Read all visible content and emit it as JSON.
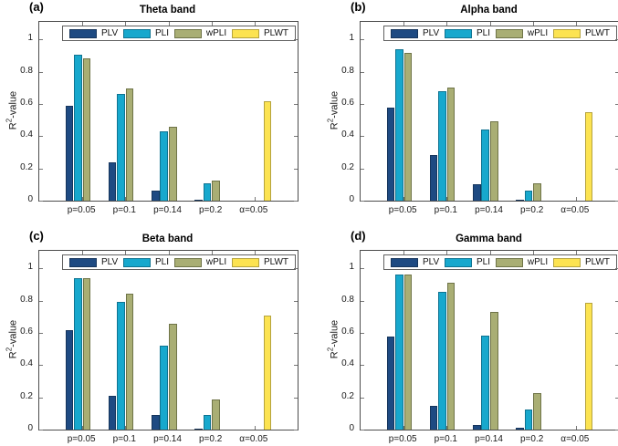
{
  "figure": {
    "background": "#ffffff",
    "axis_color": "#4c4c4c",
    "tick_color": "#777777"
  },
  "chart_data": [
    {
      "type": "bar",
      "panel_label": "(a)",
      "title": "Theta band",
      "ylabel_base": "R",
      "ylabel_sup": "2",
      "ylabel_rest": "-value",
      "categories": [
        "p=0.05",
        "p=0.1",
        "p=0.14",
        "p=0.2",
        "α=0.05"
      ],
      "series": [
        {
          "name": "PLV",
          "color": "#1e4a82",
          "edge": "#16355c",
          "values": [
            0.59,
            0.24,
            0.065,
            0.005,
            0
          ]
        },
        {
          "name": "PLI",
          "color": "#17a8cd",
          "edge": "#0f7391",
          "values": [
            0.905,
            0.665,
            0.43,
            0.105,
            0
          ]
        },
        {
          "name": "wPLI",
          "color": "#a9ae74",
          "edge": "#6f7448",
          "values": [
            0.885,
            0.695,
            0.46,
            0.125,
            0
          ]
        },
        {
          "name": "PLWT",
          "color": "#fce351",
          "edge": "#b5a33e",
          "values": [
            0,
            0,
            0,
            0,
            0.62
          ]
        }
      ],
      "ylim": [
        0,
        1.11
      ],
      "yticks": [
        "0",
        "0.2",
        "0.4",
        "0.6",
        "0.8",
        "1"
      ],
      "legend_position": "top-inside",
      "grid": false
    },
    {
      "type": "bar",
      "panel_label": "(b)",
      "title": "Alpha band",
      "ylabel_base": "R",
      "ylabel_sup": "2",
      "ylabel_rest": "-value",
      "categories": [
        "p=0.05",
        "p=0.1",
        "p=0.14",
        "p=0.2",
        "α=0.05"
      ],
      "series": [
        {
          "name": "PLV",
          "color": "#1e4a82",
          "edge": "#16355c",
          "values": [
            0.575,
            0.285,
            0.1,
            0.005,
            0
          ]
        },
        {
          "name": "PLI",
          "color": "#17a8cd",
          "edge": "#0f7391",
          "values": [
            0.94,
            0.68,
            0.44,
            0.065,
            0
          ]
        },
        {
          "name": "wPLI",
          "color": "#a9ae74",
          "edge": "#6f7448",
          "values": [
            0.915,
            0.705,
            0.495,
            0.105,
            0
          ]
        },
        {
          "name": "PLWT",
          "color": "#fce351",
          "edge": "#b5a33e",
          "values": [
            0,
            0,
            0,
            0,
            0.55
          ]
        }
      ],
      "ylim": [
        0,
        1.11
      ],
      "yticks": [
        "0",
        "0.2",
        "0.4",
        "0.6",
        "0.8",
        "1"
      ],
      "legend_position": "top-inside",
      "grid": false
    },
    {
      "type": "bar",
      "panel_label": "(c)",
      "title": "Beta band",
      "ylabel_base": "R",
      "ylabel_sup": "2",
      "ylabel_rest": "-value",
      "categories": [
        "p=0.05",
        "p=0.1",
        "p=0.14",
        "p=0.2",
        "α=0.05"
      ],
      "series": [
        {
          "name": "PLV",
          "color": "#1e4a82",
          "edge": "#16355c",
          "values": [
            0.62,
            0.21,
            0.09,
            0.005,
            0
          ]
        },
        {
          "name": "PLI",
          "color": "#17a8cd",
          "edge": "#0f7391",
          "values": [
            0.94,
            0.795,
            0.52,
            0.09,
            0
          ]
        },
        {
          "name": "wPLI",
          "color": "#a9ae74",
          "edge": "#6f7448",
          "values": [
            0.94,
            0.845,
            0.655,
            0.185,
            0
          ]
        },
        {
          "name": "PLWT",
          "color": "#fce351",
          "edge": "#b5a33e",
          "values": [
            0,
            0,
            0,
            0,
            0.71
          ]
        }
      ],
      "ylim": [
        0,
        1.11
      ],
      "yticks": [
        "0",
        "0.2",
        "0.4",
        "0.6",
        "0.8",
        "1"
      ],
      "legend_position": "top-inside",
      "grid": false
    },
    {
      "type": "bar",
      "panel_label": "(d)",
      "title": "Gamma band",
      "ylabel_base": "R",
      "ylabel_sup": "2",
      "ylabel_rest": "-value",
      "categories": [
        "p=0.05",
        "p=0.1",
        "p=0.14",
        "p=0.2",
        "α=0.05"
      ],
      "series": [
        {
          "name": "PLV",
          "color": "#1e4a82",
          "edge": "#16355c",
          "values": [
            0.58,
            0.145,
            0.027,
            0.012,
            0
          ]
        },
        {
          "name": "PLI",
          "color": "#17a8cd",
          "edge": "#0f7391",
          "values": [
            0.965,
            0.855,
            0.585,
            0.125,
            0
          ]
        },
        {
          "name": "wPLI",
          "color": "#a9ae74",
          "edge": "#6f7448",
          "values": [
            0.965,
            0.91,
            0.73,
            0.225,
            0
          ]
        },
        {
          "name": "PLWT",
          "color": "#fce351",
          "edge": "#b5a33e",
          "values": [
            0,
            0,
            0,
            0,
            0.785
          ]
        }
      ],
      "ylim": [
        0,
        1.11
      ],
      "yticks": [
        "0",
        "0.2",
        "0.4",
        "0.6",
        "0.8",
        "1"
      ],
      "legend_position": "top-inside",
      "grid": false
    }
  ]
}
